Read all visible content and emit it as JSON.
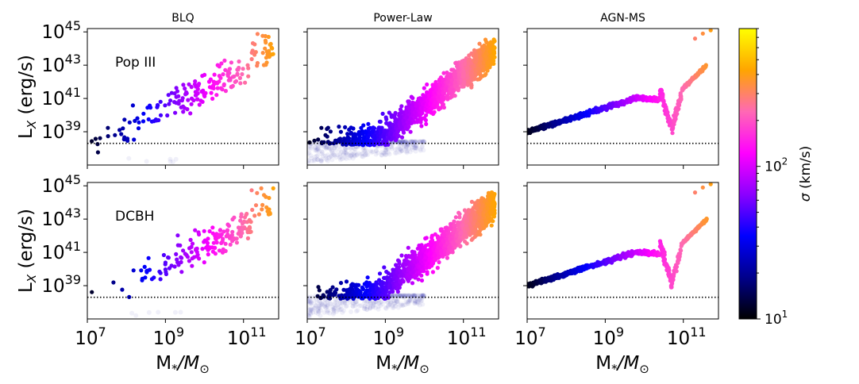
{
  "figure": {
    "ylabel": "L",
    "ylabel_sub": "X",
    "ylabel_unit": " (erg/s)",
    "xlabel_main": "M",
    "xlabel_star": "*",
    "xlabel_sep": "/M",
    "xlabel_sun": "⊙",
    "colorbar": {
      "label_sigma": "σ",
      "label_unit": " (km/s)",
      "scale": "log",
      "range": [
        10,
        800
      ],
      "ticks": [
        {
          "base": "10",
          "exp": "1",
          "value": 10
        },
        {
          "base": "10",
          "exp": "2",
          "value": 100
        }
      ],
      "colormap": [
        "#0d0887",
        "#000000",
        "#00008b",
        "#0000ff",
        "#8b00ff",
        "#ff00ff",
        "#ff4fa0",
        "#ffa050",
        "#ffd040",
        "#ffff66"
      ]
    },
    "colormap_stops": [
      "#000000",
      "#00008b",
      "#0000ff",
      "#8b00ff",
      "#ff00ff",
      "#ff69b4",
      "#ffa500",
      "#ffff00"
    ],
    "threshold_logLx": 38.3
  },
  "chart_data": [
    {
      "type": "scatter",
      "title": "BLQ",
      "row": 0,
      "col": 0,
      "model": "blq",
      "label": "Pop III",
      "xlim": [
        7,
        11.9
      ],
      "ylim": [
        37.0,
        45.2
      ],
      "xscale": "log",
      "yscale": "log",
      "xticks": [
        {
          "exp": "7",
          "v": 7
        },
        {
          "exp": "9",
          "v": 9
        },
        {
          "exp": "11",
          "v": 11
        }
      ],
      "yticks": [
        {
          "exp": "39",
          "v": 39
        },
        {
          "exp": "41",
          "v": 41
        },
        {
          "exp": "43",
          "v": 43
        },
        {
          "exp": "45",
          "v": 45
        }
      ],
      "show_yticklabels": true,
      "show_xticklabels": false,
      "threshold_logLx": 38.3
    },
    {
      "type": "scatter",
      "title": "Power-Law",
      "row": 0,
      "col": 1,
      "model": "powerlaw",
      "xlim": [
        7,
        11.9
      ],
      "ylim": [
        37.0,
        45.2
      ],
      "xscale": "log",
      "yscale": "log",
      "xticks": [
        {
          "exp": "7",
          "v": 7
        },
        {
          "exp": "9",
          "v": 9
        },
        {
          "exp": "11",
          "v": 11
        }
      ],
      "yticks": [
        {
          "exp": "39",
          "v": 39
        },
        {
          "exp": "41",
          "v": 41
        },
        {
          "exp": "43",
          "v": 43
        },
        {
          "exp": "45",
          "v": 45
        }
      ],
      "show_yticklabels": false,
      "show_xticklabels": false,
      "threshold_logLx": 38.3
    },
    {
      "type": "scatter",
      "title": "AGN-MS",
      "row": 0,
      "col": 2,
      "model": "agnms",
      "xlim": [
        7,
        11.9
      ],
      "ylim": [
        37.0,
        45.2
      ],
      "xscale": "log",
      "yscale": "log",
      "xticks": [
        {
          "exp": "7",
          "v": 7
        },
        {
          "exp": "9",
          "v": 9
        },
        {
          "exp": "11",
          "v": 11
        }
      ],
      "yticks": [
        {
          "exp": "39",
          "v": 39
        },
        {
          "exp": "41",
          "v": 41
        },
        {
          "exp": "43",
          "v": 43
        },
        {
          "exp": "45",
          "v": 45
        }
      ],
      "show_yticklabels": false,
      "show_xticklabels": false,
      "threshold_logLx": 38.3
    },
    {
      "type": "scatter",
      "title": "",
      "row": 1,
      "col": 0,
      "model": "blq",
      "label": "DCBH",
      "xlim": [
        7,
        11.9
      ],
      "ylim": [
        37.0,
        45.2
      ],
      "xscale": "log",
      "yscale": "log",
      "xticks": [
        {
          "exp": "7",
          "v": 7
        },
        {
          "exp": "9",
          "v": 9
        },
        {
          "exp": "11",
          "v": 11
        }
      ],
      "yticks": [
        {
          "exp": "39",
          "v": 39
        },
        {
          "exp": "41",
          "v": 41
        },
        {
          "exp": "43",
          "v": 43
        },
        {
          "exp": "45",
          "v": 45
        }
      ],
      "show_yticklabels": true,
      "show_xticklabels": true,
      "threshold_logLx": 38.3
    },
    {
      "type": "scatter",
      "title": "",
      "row": 1,
      "col": 1,
      "model": "powerlaw",
      "xlim": [
        7,
        11.9
      ],
      "ylim": [
        37.0,
        45.2
      ],
      "xscale": "log",
      "yscale": "log",
      "xticks": [
        {
          "exp": "7",
          "v": 7
        },
        {
          "exp": "9",
          "v": 9
        },
        {
          "exp": "11",
          "v": 11
        }
      ],
      "yticks": [
        {
          "exp": "39",
          "v": 39
        },
        {
          "exp": "41",
          "v": 41
        },
        {
          "exp": "43",
          "v": 43
        },
        {
          "exp": "45",
          "v": 45
        }
      ],
      "show_yticklabels": false,
      "show_xticklabels": true,
      "threshold_logLx": 38.3
    },
    {
      "type": "scatter",
      "title": "",
      "row": 1,
      "col": 2,
      "model": "agnms",
      "xlim": [
        7,
        11.9
      ],
      "ylim": [
        37.0,
        45.2
      ],
      "xscale": "log",
      "yscale": "log",
      "xticks": [
        {
          "exp": "7",
          "v": 7
        },
        {
          "exp": "9",
          "v": 9
        },
        {
          "exp": "11",
          "v": 11
        }
      ],
      "yticks": [
        {
          "exp": "39",
          "v": 39
        },
        {
          "exp": "41",
          "v": 41
        },
        {
          "exp": "43",
          "v": 43
        },
        {
          "exp": "45",
          "v": 45
        }
      ],
      "show_yticklabels": false,
      "show_xticklabels": true,
      "threshold_logLx": 38.3
    }
  ]
}
